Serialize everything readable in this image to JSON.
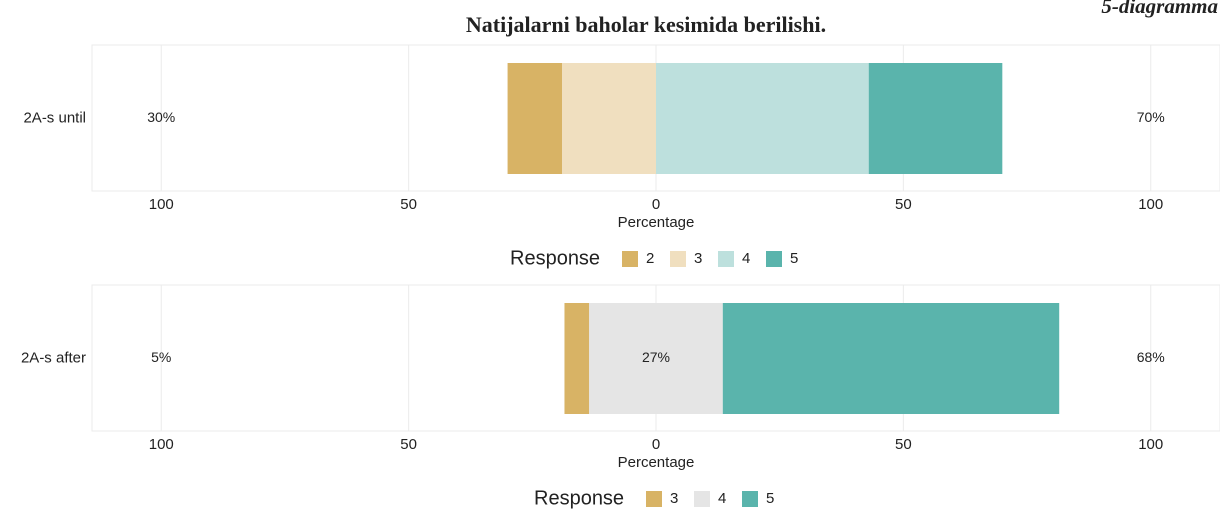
{
  "caption": "5-diagramma",
  "title": "Natijalarni baholar kesimida berilishi.",
  "chart_data": [
    {
      "type": "likert",
      "categories": [
        "2A-s until"
      ],
      "xlabel": "Percentage",
      "legend_title": "Response",
      "xlim": [
        -114,
        114
      ],
      "xticks": [
        {
          "value": -100,
          "label": "100"
        },
        {
          "value": -50,
          "label": "50"
        },
        0,
        50,
        100
      ],
      "grid": true,
      "series": [
        {
          "name": "2",
          "color": "#d8b365",
          "values": [
            11
          ]
        },
        {
          "name": "3",
          "color": "#f0dfbf",
          "values": [
            19
          ]
        },
        {
          "name": "4",
          "color": "#bde0dd",
          "values": [
            43
          ]
        },
        {
          "name": "5",
          "color": "#5ab4ac",
          "values": [
            27
          ]
        }
      ],
      "low_total": 30,
      "low_total_label": "30%",
      "high_total": 70,
      "high_total_label": "70%"
    },
    {
      "type": "likert",
      "categories": [
        "2A-s after"
      ],
      "xlabel": "Percentage",
      "legend_title": "Response",
      "xlim": [
        -114,
        114
      ],
      "xticks": [
        {
          "value": -100,
          "label": "100"
        },
        {
          "value": -50,
          "label": "50"
        },
        0,
        50,
        100
      ],
      "grid": true,
      "series": [
        {
          "name": "3",
          "color": "#d8b365",
          "values": [
            5
          ]
        },
        {
          "name": "4",
          "color": "#e5e5e5",
          "values": [
            27
          ]
        },
        {
          "name": "5",
          "color": "#5ab4ac",
          "values": [
            68
          ]
        }
      ],
      "low_total": 5,
      "low_total_label": "5%",
      "neutral_total": 27,
      "neutral_total_label": "27%",
      "high_total": 68,
      "high_total_label": "68%"
    }
  ]
}
